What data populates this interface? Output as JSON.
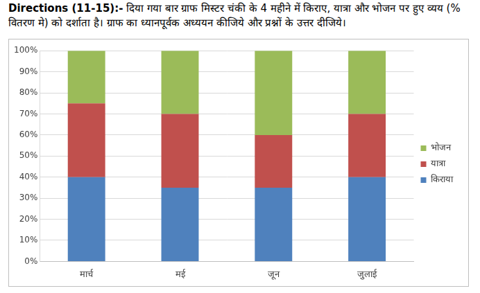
{
  "chart_data": {
    "type": "bar",
    "title": "Directions (11-15):- दिया गया बार ग्राफ मिस्टर चंकी के 4 महीने में किराए, यात्रा और भोजन पर हुए व्यय (% वितरण मे) को दर्शाता है। ग्राफ का ध्यानपूर्वक अध्ययन कीजिये और प्रश्नों के उत्तर दीजिये।",
    "categories": [
      "मार्च",
      "मई",
      "जून",
      "जुलाई"
    ],
    "series": [
      {
        "name": "किराया",
        "color": "#4f81bd",
        "values": [
          40,
          35,
          35,
          40
        ]
      },
      {
        "name": "यात्रा",
        "color": "#c0504d",
        "values": [
          35,
          35,
          25,
          30
        ]
      },
      {
        "name": "भोजन",
        "color": "#9bbb59",
        "values": [
          25,
          30,
          40,
          30
        ]
      }
    ],
    "stacked": true,
    "ylim": [
      0,
      100
    ],
    "yticks": [
      {
        "value": 0,
        "label": "0%"
      },
      {
        "value": 10,
        "label": "10%"
      },
      {
        "value": 20,
        "label": "20%"
      },
      {
        "value": 30,
        "label": "30%"
      },
      {
        "value": 40,
        "label": "40%"
      },
      {
        "value": 50,
        "label": "50%"
      },
      {
        "value": 60,
        "label": "60%"
      },
      {
        "value": 70,
        "label": "70%"
      },
      {
        "value": 80,
        "label": "80%"
      },
      {
        "value": 90,
        "label": "90%"
      },
      {
        "value": 100,
        "label": "100%"
      }
    ],
    "grid": true,
    "legend": "right"
  }
}
